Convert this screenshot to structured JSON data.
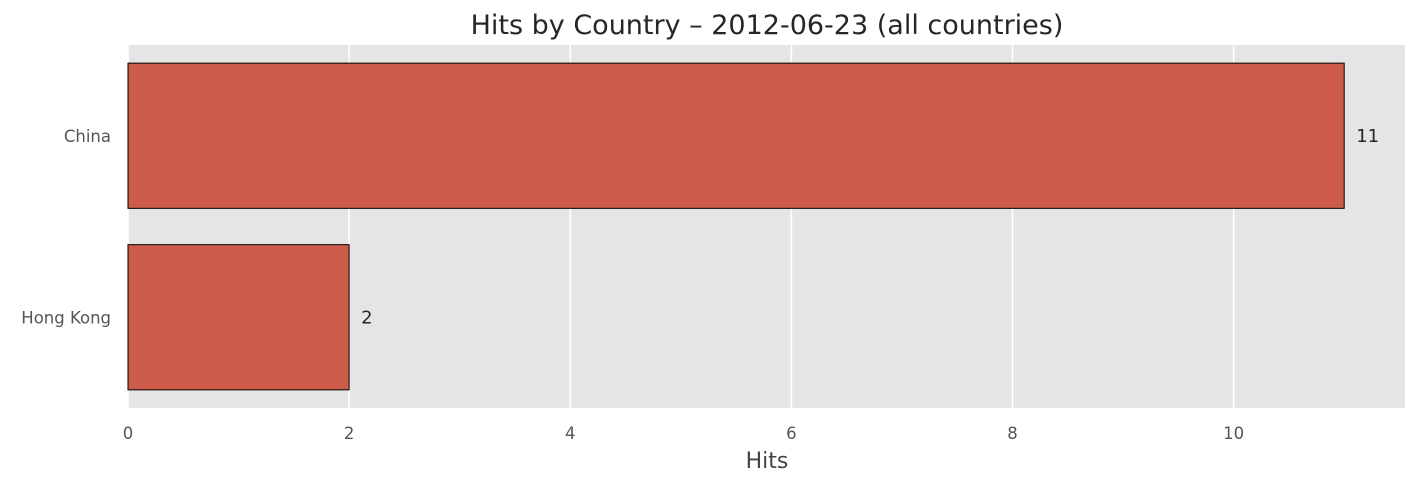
{
  "chart_data": {
    "type": "bar",
    "orientation": "horizontal",
    "title": "Hits by Country – 2012-06-23 (all countries)",
    "xlabel": "Hits",
    "ylabel": "",
    "categories": [
      "China",
      "Hong Kong"
    ],
    "values": [
      11,
      2
    ],
    "xlim": [
      0,
      11.55
    ],
    "xticks": [
      "0",
      "2",
      "4",
      "6",
      "8",
      "10"
    ],
    "grid": true,
    "colors": {
      "bar": "#cd5b4a",
      "bar_edge": "#000000",
      "plot_bg": "#e5e5e5",
      "grid": "#ffffff"
    }
  }
}
